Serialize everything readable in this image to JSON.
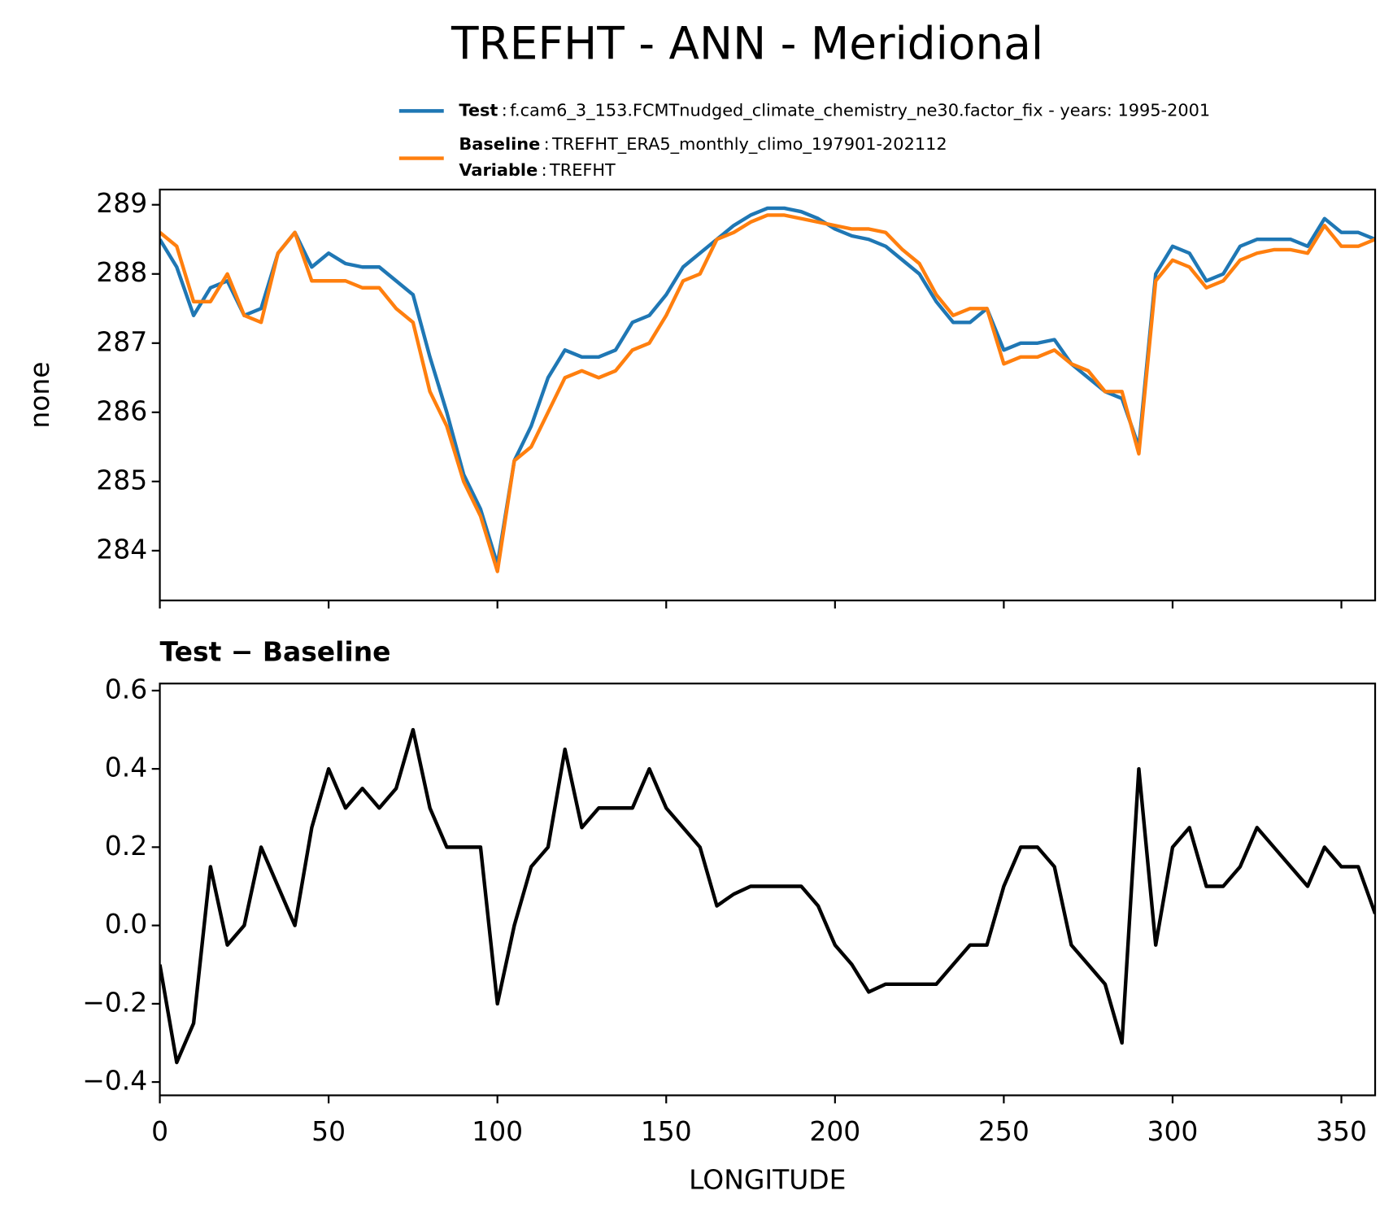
{
  "title": "TREFHT - ANN - Meridional",
  "chart_data": [
    {
      "type": "line",
      "ylabel": "none",
      "x": [
        0,
        5,
        10,
        15,
        20,
        25,
        30,
        35,
        40,
        45,
        50,
        55,
        60,
        65,
        70,
        75,
        80,
        85,
        90,
        95,
        100,
        105,
        110,
        115,
        120,
        125,
        130,
        135,
        140,
        145,
        150,
        155,
        160,
        165,
        170,
        175,
        180,
        185,
        190,
        195,
        200,
        205,
        210,
        215,
        220,
        225,
        230,
        235,
        240,
        245,
        250,
        255,
        260,
        265,
        270,
        275,
        280,
        285,
        290,
        295,
        300,
        305,
        310,
        315,
        320,
        325,
        330,
        335,
        340,
        345,
        350,
        355,
        360
      ],
      "series": [
        {
          "name": "Test",
          "separator": ":",
          "description": "f.cam6_3_153.FCMTnudged_climate_chemistry_ne30.factor_fix - years: 1995-2001",
          "color": "#1f77b4",
          "values": [
            288.5,
            288.1,
            287.4,
            287.8,
            287.9,
            287.4,
            287.5,
            288.3,
            288.6,
            288.1,
            288.3,
            288.15,
            288.1,
            288.1,
            287.9,
            287.7,
            286.8,
            286.0,
            285.1,
            284.6,
            283.8,
            285.3,
            285.8,
            286.5,
            286.9,
            286.8,
            286.8,
            286.9,
            287.3,
            287.4,
            287.7,
            288.1,
            288.3,
            288.5,
            288.7,
            288.85,
            288.95,
            288.95,
            288.9,
            288.8,
            288.65,
            288.55,
            288.5,
            288.4,
            288.2,
            288.0,
            287.6,
            287.3,
            287.3,
            287.5,
            286.9,
            287.0,
            287.0,
            287.05,
            286.7,
            286.5,
            286.3,
            286.2,
            285.5,
            288.0,
            288.4,
            288.3,
            287.9,
            288.0,
            288.4,
            288.5,
            288.5,
            288.5,
            288.4,
            288.8,
            288.6,
            288.6,
            288.5
          ]
        },
        {
          "name": "Baseline",
          "separator": ":",
          "description": "TREFHT_ERA5_monthly_climo_197901-202112",
          "color": "#ff7f0e",
          "values": [
            288.6,
            288.4,
            287.6,
            287.6,
            288.0,
            287.4,
            287.3,
            288.3,
            288.6,
            287.9,
            287.9,
            287.9,
            287.8,
            287.8,
            287.5,
            287.3,
            286.3,
            285.8,
            285.0,
            284.5,
            283.7,
            285.3,
            285.5,
            286.0,
            286.5,
            286.6,
            286.5,
            286.6,
            286.9,
            287.0,
            287.4,
            287.9,
            288.0,
            288.5,
            288.6,
            288.75,
            288.85,
            288.85,
            288.8,
            288.75,
            288.7,
            288.65,
            288.65,
            288.6,
            288.35,
            288.15,
            287.7,
            287.4,
            287.5,
            287.5,
            286.7,
            286.8,
            286.8,
            286.9,
            286.7,
            286.6,
            286.3,
            286.3,
            285.4,
            287.9,
            288.2,
            288.1,
            287.8,
            287.9,
            288.2,
            288.3,
            288.35,
            288.35,
            288.3,
            288.7,
            288.4,
            288.4,
            288.5
          ]
        }
      ],
      "legend_extra": {
        "name": "Variable",
        "separator": ":",
        "description": "TREFHT"
      },
      "xlim": [
        0,
        360
      ],
      "xticks": [
        0,
        50,
        100,
        150,
        200,
        250,
        300,
        350
      ],
      "ylim": [
        283.28,
        289.22
      ],
      "yticks": [
        284,
        285,
        286,
        287,
        288,
        289
      ]
    },
    {
      "type": "line",
      "title": "Test − Baseline",
      "xlabel": "LONGITUDE",
      "x": [
        0,
        5,
        10,
        15,
        20,
        25,
        30,
        35,
        40,
        45,
        50,
        55,
        60,
        65,
        70,
        75,
        80,
        85,
        90,
        95,
        100,
        105,
        110,
        115,
        120,
        125,
        130,
        135,
        140,
        145,
        150,
        155,
        160,
        165,
        170,
        175,
        180,
        185,
        190,
        195,
        200,
        205,
        210,
        215,
        220,
        225,
        230,
        235,
        240,
        245,
        250,
        255,
        260,
        265,
        270,
        275,
        280,
        285,
        290,
        295,
        300,
        305,
        310,
        315,
        320,
        325,
        330,
        335,
        340,
        345,
        350,
        355,
        360
      ],
      "series": [
        {
          "color": "#000000",
          "values": [
            -0.1,
            -0.35,
            -0.25,
            0.15,
            -0.05,
            0.0,
            0.2,
            0.1,
            0.0,
            0.25,
            0.4,
            0.3,
            0.35,
            0.3,
            0.35,
            0.5,
            0.3,
            0.2,
            0.2,
            0.2,
            -0.2,
            0.0,
            0.15,
            0.2,
            0.45,
            0.25,
            0.3,
            0.3,
            0.3,
            0.4,
            0.3,
            0.25,
            0.2,
            0.05,
            0.08,
            0.1,
            0.1,
            0.1,
            0.1,
            0.05,
            -0.05,
            -0.1,
            -0.17,
            -0.15,
            -0.15,
            -0.15,
            -0.15,
            -0.1,
            -0.05,
            -0.05,
            0.1,
            0.2,
            0.2,
            0.15,
            -0.05,
            -0.1,
            -0.15,
            -0.3,
            0.4,
            -0.05,
            0.2,
            0.25,
            0.1,
            0.1,
            0.15,
            0.25,
            0.2,
            0.15,
            0.1,
            0.2,
            0.15,
            0.15,
            0.03
          ]
        }
      ],
      "xlim": [
        0,
        360
      ],
      "xticks": [
        0,
        50,
        100,
        150,
        200,
        250,
        300,
        350
      ],
      "ylim": [
        -0.434,
        0.618
      ],
      "yticks": [
        {
          "value": -0.4,
          "label": "−0.4"
        },
        {
          "value": -0.2,
          "label": "−0.2"
        },
        {
          "value": 0,
          "label": "0.0"
        },
        0.2,
        0.4,
        0.6
      ]
    }
  ]
}
